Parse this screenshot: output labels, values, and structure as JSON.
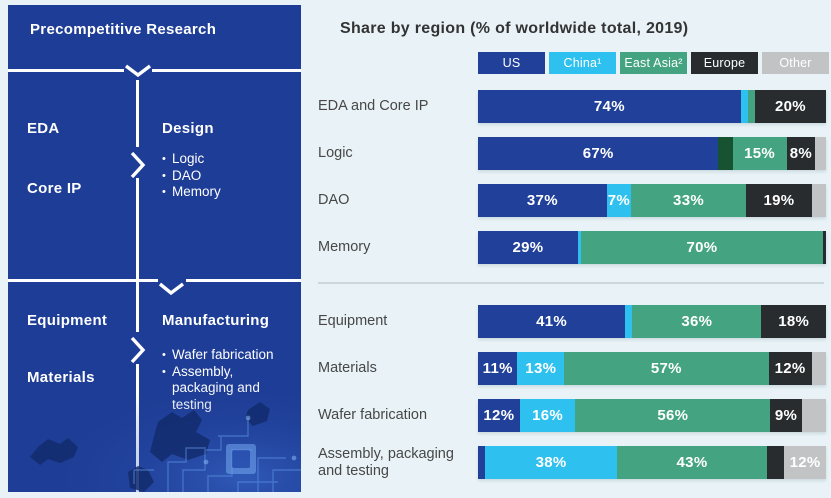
{
  "colors": {
    "background": "#E9F3F7",
    "panel_blue": "#1E3D96",
    "separator": "#CBD7DD",
    "title_text": "#333333",
    "row_label_text": "#474747",
    "bar_label_text": "#FFFFFF"
  },
  "left_panel": {
    "header": "Precompetitive Research",
    "top_section": {
      "left_items": [
        "EDA",
        "Core IP"
      ],
      "right_title": "Design",
      "right_bullets": [
        "Logic",
        "DAO",
        "Memory"
      ]
    },
    "bottom_section": {
      "left_items": [
        "Equipment",
        "Materials"
      ],
      "right_title": "Manufacturing",
      "right_bullets": [
        "Wafer fabrication",
        "Assembly, packaging and testing"
      ]
    }
  },
  "chart_data": {
    "type": "bar",
    "variant": "horizontal_stacked",
    "title": "Share by region (% of worldwide total, 2019)",
    "value_unit": "percent",
    "legend_position": "top-right",
    "legend": [
      {
        "id": "us",
        "label": "US",
        "color": "#21409A"
      },
      {
        "id": "china",
        "label": "China¹",
        "color": "#2EC1F0"
      },
      {
        "id": "east_asia",
        "label": "East Asia²",
        "color": "#44A482"
      },
      {
        "id": "europe",
        "label": "Europe",
        "color": "#282C2F"
      },
      {
        "id": "other",
        "label": "Other",
        "color": "#C2C3C5"
      }
    ],
    "categories": [
      "EDA and Core IP",
      "Logic",
      "DAO",
      "Memory",
      "Equipment",
      "Materials",
      "Wafer fabrication",
      "Assembly, packaging and testing"
    ],
    "series": [
      {
        "name": "US",
        "values": [
          74,
          67,
          37,
          29,
          41,
          11,
          12,
          2
        ]
      },
      {
        "name": "China",
        "values": [
          2,
          4,
          7,
          1,
          2,
          13,
          16,
          38
        ]
      },
      {
        "name": "East Asia",
        "values": [
          2,
          15,
          33,
          70,
          36,
          57,
          56,
          43
        ]
      },
      {
        "name": "Europe",
        "values": [
          20,
          8,
          19,
          1,
          18,
          12,
          9,
          5
        ]
      },
      {
        "name": "Other",
        "values": [
          0,
          3,
          4,
          0,
          0,
          4,
          7,
          12
        ]
      }
    ],
    "groups": [
      {
        "rows": [
          {
            "category": "EDA and Core IP",
            "segments": [
              {
                "region": "us",
                "value": 74,
                "label": "74%"
              },
              {
                "region": "china",
                "value": 2
              },
              {
                "region": "east_asia",
                "value": 2
              },
              {
                "region": "europe",
                "value": 20,
                "label": "20%"
              }
            ]
          },
          {
            "category": "Logic",
            "segments": [
              {
                "region": "us",
                "value": 67,
                "label": "67%"
              },
              {
                "region": "china",
                "value": 4,
                "color": "#175231"
              },
              {
                "region": "east_asia",
                "value": 15,
                "label": "15%"
              },
              {
                "region": "europe",
                "value": 8,
                "label": "8%"
              },
              {
                "region": "other",
                "value": 3
              }
            ]
          },
          {
            "category": "DAO",
            "segments": [
              {
                "region": "us",
                "value": 37,
                "label": "37%"
              },
              {
                "region": "china",
                "value": 7,
                "label": "7%"
              },
              {
                "region": "east_asia",
                "value": 33,
                "label": "33%"
              },
              {
                "region": "europe",
                "value": 19,
                "label": "19%"
              },
              {
                "region": "other",
                "value": 4
              }
            ]
          },
          {
            "category": "Memory",
            "segments": [
              {
                "region": "us",
                "value": 29,
                "label": "29%"
              },
              {
                "region": "china",
                "value": 1
              },
              {
                "region": "east_asia",
                "value": 70,
                "label": "70%"
              },
              {
                "region": "europe",
                "value": 1
              }
            ]
          }
        ]
      },
      {
        "rows": [
          {
            "category": "Equipment",
            "segments": [
              {
                "region": "us",
                "value": 41,
                "label": "41%"
              },
              {
                "region": "china",
                "value": 2
              },
              {
                "region": "east_asia",
                "value": 36,
                "label": "36%"
              },
              {
                "region": "europe",
                "value": 18,
                "label": "18%"
              }
            ]
          },
          {
            "category": "Materials",
            "segments": [
              {
                "region": "us",
                "value": 11,
                "label": "11%"
              },
              {
                "region": "china",
                "value": 13,
                "label": "13%"
              },
              {
                "region": "east_asia",
                "value": 57,
                "label": "57%"
              },
              {
                "region": "europe",
                "value": 12,
                "label": "12%"
              },
              {
                "region": "other",
                "value": 4
              }
            ]
          },
          {
            "category": "Wafer fabrication",
            "segments": [
              {
                "region": "us",
                "value": 12,
                "label": "12%"
              },
              {
                "region": "china",
                "value": 16,
                "label": "16%"
              },
              {
                "region": "east_asia",
                "value": 56,
                "label": "56%"
              },
              {
                "region": "europe",
                "value": 9,
                "label": "9%"
              },
              {
                "region": "other",
                "value": 7
              }
            ]
          },
          {
            "category": "Assembly, packaging\nand testing",
            "segments": [
              {
                "region": "us",
                "value": 2
              },
              {
                "region": "china",
                "value": 38,
                "label": "38%"
              },
              {
                "region": "east_asia",
                "value": 43,
                "label": "43%"
              },
              {
                "region": "europe",
                "value": 5
              },
              {
                "region": "other",
                "value": 12,
                "label": "12%"
              }
            ]
          }
        ]
      }
    ]
  }
}
